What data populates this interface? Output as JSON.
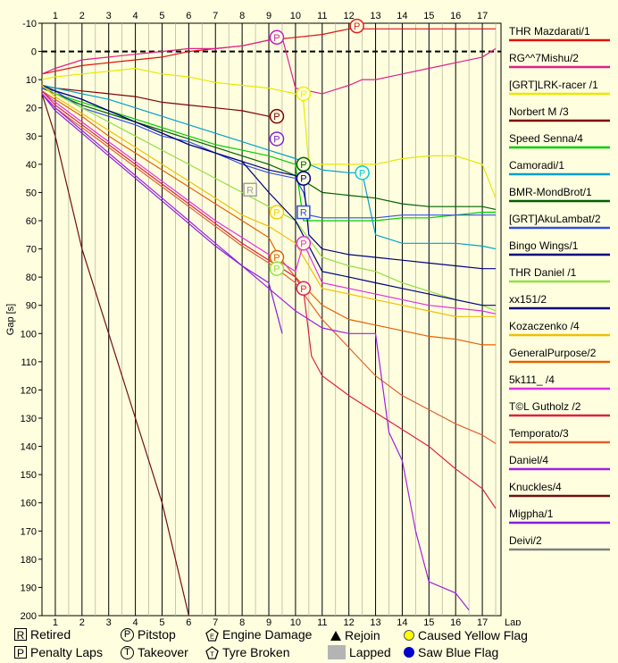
{
  "chart_data": {
    "type": "line",
    "ylabel": "Gap [s]",
    "xlabel": "Lap",
    "xlim": [
      0.5,
      17.7
    ],
    "ylim": [
      -10,
      200
    ],
    "x_ticks": [
      1,
      2,
      3,
      4,
      5,
      6,
      7,
      8,
      9,
      10,
      11,
      12,
      13,
      14,
      15,
      16,
      17
    ],
    "y_ticks": [
      -10,
      0,
      10,
      20,
      30,
      40,
      50,
      60,
      70,
      80,
      90,
      100,
      110,
      120,
      130,
      140,
      150,
      160,
      170,
      180,
      190,
      200
    ],
    "series": [
      {
        "name": "THR Mazdarati/1",
        "color": "#e01010",
        "x": [
          0.5,
          1,
          2,
          3,
          4,
          5,
          6,
          7,
          8,
          9,
          10,
          11,
          12,
          13,
          14,
          15,
          16,
          17,
          17.5
        ],
        "y": [
          8,
          7,
          5,
          4,
          3,
          2,
          0,
          -1,
          -2,
          -4,
          -5,
          -6,
          -8,
          -8,
          -8,
          -8,
          -8,
          -8,
          -8
        ]
      },
      {
        "name": "RG^^7Mishu/2",
        "color": "#e0208c",
        "x": [
          0.5,
          1,
          2,
          3,
          4,
          5,
          6,
          7,
          8,
          9,
          9.5,
          10,
          11,
          12,
          12.5,
          13,
          14,
          15,
          16,
          17,
          17.5
        ],
        "y": [
          8,
          6,
          3,
          2,
          1,
          0,
          -1,
          -1,
          -2,
          -4,
          -5,
          13,
          15,
          12,
          10,
          10,
          8,
          6,
          4,
          2,
          -1
        ]
      },
      {
        "name": "[GRT]LRK-racer /1",
        "color": "#e8e800",
        "x": [
          0.5,
          1,
          2,
          3,
          4,
          5,
          6,
          7,
          8,
          9,
          10,
          10.3,
          10.5,
          11,
          12,
          13,
          14,
          15,
          16,
          17,
          17.5
        ],
        "y": [
          10,
          9,
          8,
          7,
          6,
          8,
          9,
          11,
          12,
          13,
          15,
          18,
          40,
          40,
          40,
          40,
          38,
          37,
          37,
          40,
          52
        ]
      },
      {
        "name": "Norbert M /3",
        "color": "#800000",
        "x": [
          0.5,
          1,
          2,
          3,
          4,
          5,
          6,
          7,
          8,
          9
        ],
        "y": [
          12,
          13,
          14,
          15,
          16,
          18,
          19,
          20,
          21,
          23
        ]
      },
      {
        "name": "Speed Senna/4",
        "color": "#00cc00",
        "x": [
          0.5,
          1,
          2,
          3,
          4,
          5,
          6,
          7,
          8,
          9,
          10,
          10.3,
          11,
          12,
          13,
          14,
          15,
          16,
          17,
          17.5
        ],
        "y": [
          13,
          15,
          18,
          21,
          24,
          27,
          30,
          33,
          35,
          37,
          40,
          60,
          60,
          60,
          60,
          59,
          59,
          58,
          57,
          57
        ]
      },
      {
        "name": "Camoradi/1",
        "color": "#00a0c8",
        "x": [
          0.5,
          1,
          2,
          3,
          4,
          5,
          6,
          7,
          8,
          9,
          10,
          11,
          12,
          12.5,
          13,
          14,
          15,
          16,
          17,
          17.5
        ],
        "y": [
          12,
          13,
          15,
          17,
          20,
          23,
          26,
          29,
          32,
          35,
          38,
          42,
          43,
          43,
          65,
          68,
          68,
          68,
          69,
          70
        ]
      },
      {
        "name": "BMR-MondBrot/1",
        "color": "#006000",
        "x": [
          0.5,
          1,
          2,
          3,
          4,
          5,
          6,
          7,
          8,
          9,
          10,
          11,
          12,
          13,
          14,
          15,
          16,
          17,
          17.5
        ],
        "y": [
          13,
          15,
          19,
          22,
          25,
          28,
          31,
          34,
          37,
          40,
          44,
          50,
          51,
          52,
          54,
          55,
          55,
          55,
          56
        ]
      },
      {
        "name": "[GRT]AkuLambat/2",
        "color": "#3050e0",
        "x": [
          0.5,
          1,
          2,
          3,
          4,
          5,
          6,
          7,
          8,
          9,
          10,
          10.3,
          10.5,
          11,
          12,
          13,
          14,
          15,
          16,
          17,
          17.5
        ],
        "y": [
          13,
          14,
          20,
          23,
          26,
          30,
          32,
          36,
          40,
          43,
          45,
          50,
          58,
          59,
          59,
          59,
          58,
          58,
          58,
          58,
          58
        ]
      },
      {
        "name": "Bingo Wings/1",
        "color": "#000080",
        "x": [
          0.5,
          1,
          2,
          3,
          4,
          5,
          6,
          7,
          8,
          9,
          10,
          10.3,
          10.5,
          11,
          12,
          13,
          14,
          15,
          16,
          17,
          17.5
        ],
        "y": [
          12,
          14,
          17,
          21,
          25,
          29,
          33,
          36,
          39,
          42,
          44,
          46,
          65,
          70,
          72,
          73,
          74,
          75,
          76,
          77,
          77
        ]
      },
      {
        "name": "THR Daniel /1",
        "color": "#90e040",
        "x": [
          0.5,
          1,
          2,
          3,
          4,
          5,
          6,
          7,
          8,
          9,
          10,
          11,
          12,
          13,
          14,
          15,
          16,
          17,
          17.5
        ],
        "y": [
          12,
          15,
          20,
          25,
          30,
          35,
          40,
          45,
          50,
          55,
          60,
          73,
          76,
          78,
          82,
          85,
          88,
          90,
          92
        ]
      },
      {
        "name": "xx151/2",
        "color": "#000080",
        "x": [
          0.5,
          1,
          2,
          3,
          4,
          5,
          6,
          7,
          8,
          9,
          10,
          11,
          12,
          13,
          14,
          15,
          16,
          17,
          17.5
        ],
        "y": [
          12,
          14,
          17,
          21,
          25,
          29,
          33,
          36,
          39,
          50,
          60,
          78,
          80,
          82,
          84,
          86,
          88,
          90,
          90
        ]
      },
      {
        "name": "Kozaczenko /4",
        "color": "#f0c000",
        "x": [
          0.5,
          1,
          2,
          3,
          4,
          5,
          6,
          7,
          8,
          9,
          10,
          11,
          12,
          13,
          14,
          15,
          16,
          17,
          17.5
        ],
        "y": [
          12,
          16,
          22,
          28,
          34,
          40,
          46,
          52,
          58,
          62,
          68,
          84,
          86,
          88,
          90,
          92,
          94,
          94,
          94
        ]
      },
      {
        "name": "GeneralPurpose/2",
        "color": "#e86000",
        "x": [
          0.5,
          1,
          2,
          3,
          4,
          5,
          6,
          7,
          8,
          9,
          9.4,
          10,
          11,
          12,
          13,
          14,
          15,
          16,
          17,
          17.5
        ],
        "y": [
          14,
          17,
          23,
          30,
          36,
          42,
          48,
          54,
          60,
          66,
          73,
          80,
          90,
          95,
          97,
          99,
          101,
          102,
          104,
          104
        ]
      },
      {
        "name": "5k111_ /4",
        "color": "#e030e0",
        "x": [
          0.5,
          1,
          2,
          3,
          4,
          5,
          6,
          7,
          8,
          9,
          10,
          10.3,
          11,
          12,
          13,
          14,
          15,
          16,
          17,
          17.5
        ],
        "y": [
          14,
          18,
          25,
          32,
          39,
          46,
          53,
          60,
          66,
          72,
          78,
          68,
          82,
          84,
          86,
          88,
          90,
          91,
          92,
          93
        ]
      },
      {
        "name": "T©L Gutholz /2",
        "color": "#e02040",
        "x": [
          0.5,
          1,
          2,
          3,
          4,
          5,
          6,
          7,
          8,
          9,
          10,
          10.3,
          10.6,
          11,
          12,
          13,
          14,
          15,
          16,
          17,
          17.5
        ],
        "y": [
          14,
          19,
          26,
          33,
          40,
          47,
          54,
          61,
          68,
          74,
          80,
          85,
          108,
          115,
          122,
          128,
          134,
          140,
          148,
          155,
          162
        ]
      },
      {
        "name": "Temporato/3",
        "color": "#e06030",
        "x": [
          0.5,
          1,
          2,
          3,
          4,
          5,
          6,
          7,
          8,
          9,
          10,
          11,
          12,
          13,
          14,
          15,
          16,
          17,
          17.5
        ],
        "y": [
          15,
          20,
          27,
          34,
          41,
          48,
          55,
          62,
          69,
          75,
          82,
          95,
          105,
          115,
          122,
          127,
          132,
          136,
          139
        ]
      },
      {
        "name": "Daniel/4",
        "color": "#a020e0",
        "x": [
          0.5,
          1,
          2,
          3,
          4,
          5,
          6,
          7,
          8,
          9,
          10,
          11,
          12,
          12.5,
          13,
          13.5,
          14,
          14.5,
          15,
          16,
          16.5
        ],
        "y": [
          15,
          20,
          28,
          36,
          44,
          52,
          60,
          68,
          76,
          84,
          92,
          98,
          100,
          100,
          100,
          135,
          145,
          170,
          188,
          192,
          198
        ]
      },
      {
        "name": "Knuckles/4",
        "color": "#701010",
        "x": [
          0.5,
          1,
          2,
          3,
          4,
          5,
          6
        ],
        "y": [
          15,
          30,
          70,
          100,
          130,
          160,
          200
        ]
      },
      {
        "name": "Migpha/1",
        "color": "#8020e0",
        "x": [
          0.5,
          1,
          2,
          3,
          4,
          5,
          6,
          7,
          8,
          9,
          9.5
        ],
        "y": [
          15,
          21,
          29,
          37,
          45,
          53,
          61,
          69,
          76,
          82,
          100
        ]
      },
      {
        "name": "Deivi/2",
        "color": "#808080",
        "x": [],
        "y": []
      }
    ],
    "markers": [
      {
        "type": "P",
        "x": 9.3,
        "y": -5,
        "color": "#c020c0"
      },
      {
        "type": "P",
        "x": 12.3,
        "y": -9,
        "color": "#e02020"
      },
      {
        "type": "P",
        "x": 10.3,
        "y": 15,
        "color": "#f0f000"
      },
      {
        "type": "P",
        "x": 9.3,
        "y": 23,
        "color": "#800000"
      },
      {
        "type": "P",
        "x": 9.3,
        "y": 31,
        "color": "#8020e0"
      },
      {
        "type": "P",
        "x": 10.3,
        "y": 40,
        "color": "#006000"
      },
      {
        "type": "P",
        "x": 10.3,
        "y": 45,
        "color": "#000080"
      },
      {
        "type": "P",
        "x": 12.5,
        "y": 43,
        "color": "#00c8e8"
      },
      {
        "type": "R",
        "x": 8.3,
        "y": 49,
        "color": "#a0a0a0"
      },
      {
        "type": "P",
        "x": 9.3,
        "y": 57,
        "color": "#f0d000"
      },
      {
        "type": "R",
        "x": 10.3,
        "y": 57,
        "color": "#3050e0"
      },
      {
        "type": "P",
        "x": 10.3,
        "y": 68,
        "color": "#e030e0"
      },
      {
        "type": "P",
        "x": 9.3,
        "y": 73,
        "color": "#e06000"
      },
      {
        "type": "P",
        "x": 9.3,
        "y": 77,
        "color": "#90e040"
      },
      {
        "type": "P",
        "x": 10.3,
        "y": 84,
        "color": "#e02060"
      }
    ],
    "grid": true,
    "legend": "right"
  },
  "key": {
    "retired": "Retired",
    "penalty": "Penalty Laps",
    "pitstop": "Pitstop",
    "takeover": "Takeover",
    "engine": "Engine Damage",
    "tyre": "Tyre Broken",
    "rejoin": "Rejoin",
    "lapped": "Lapped",
    "yellow": "Caused Yellow Flag",
    "blue": "Saw Blue Flag",
    "R": "R",
    "P": "P",
    "T": "T",
    "E": "E"
  }
}
